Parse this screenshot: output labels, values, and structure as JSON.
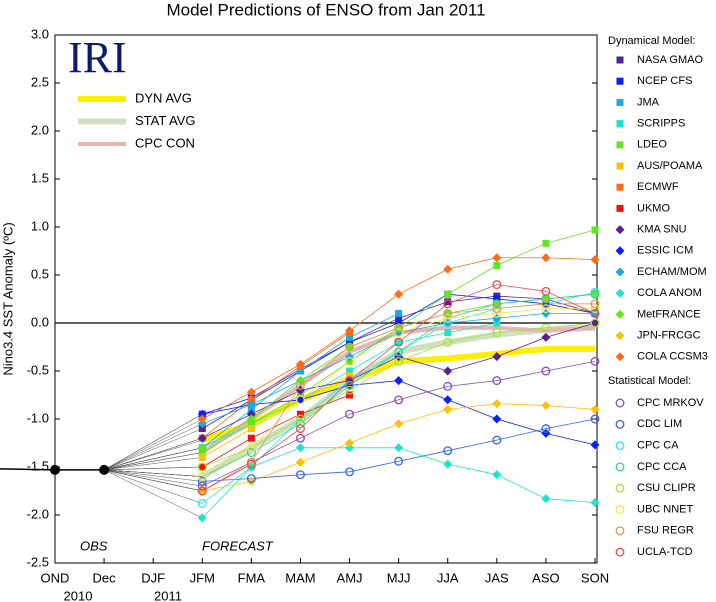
{
  "chart_data": {
    "type": "line",
    "title": "Model Predictions of ENSO from Jan 2011",
    "y_label": "Nino3.4 SST Anomaly (ºC)",
    "logo": "IRI",
    "categories": [
      "OND",
      "Dec",
      "DJF",
      "JFM",
      "FMA",
      "MAM",
      "AMJ",
      "MJJ",
      "JJA",
      "JAS",
      "ASO",
      "SON"
    ],
    "year_labels": [
      "2010",
      "2011"
    ],
    "ylim": [
      -2.5,
      3
    ],
    "yticks": [
      {
        "value": 3,
        "label": "3.0"
      },
      2.5,
      {
        "value": 2,
        "label": "2.0"
      },
      1.5,
      {
        "value": 1,
        "label": "1.0"
      },
      0.5,
      {
        "value": 0,
        "label": "0.0"
      },
      -0.5,
      {
        "value": -1,
        "label": "-1.0"
      },
      -1.5,
      {
        "value": -2,
        "label": "-2.0"
      },
      -2.5
    ],
    "observed": {
      "name": "OBS",
      "color": "#000000",
      "values": [
        -1.53,
        -1.53,
        null,
        null,
        null,
        null,
        null,
        null,
        null,
        null,
        null,
        null
      ]
    },
    "forecast_label": "FORECAST",
    "averages": [
      {
        "name": "DYN AVG",
        "color": "#ffee00",
        "values": [
          null,
          null,
          null,
          -1.22,
          -1.05,
          -0.8,
          -0.6,
          -0.4,
          -0.37,
          -0.32,
          -0.27,
          -0.27
        ]
      },
      {
        "name": "STAT AVG",
        "color": "#cfe0c0",
        "values": [
          null,
          null,
          null,
          -1.6,
          -1.3,
          -1.0,
          -0.6,
          -0.3,
          -0.2,
          -0.12,
          -0.07,
          -0.05
        ]
      },
      {
        "name": "CPC CON",
        "color": "#e8b4b4",
        "values": [
          null,
          null,
          null,
          -1.35,
          -1.0,
          -0.65,
          -0.3,
          -0.1,
          -0.05,
          -0.05,
          -0.08,
          -0.05
        ]
      }
    ],
    "dynamical": {
      "heading": "Dynamical Model:",
      "series": [
        {
          "name": "NASA GMAO",
          "color": "#5a1e96",
          "marker": "square",
          "values": [
            null,
            null,
            null,
            -1.1,
            -0.8,
            -0.5,
            -0.2,
            0.05,
            0.22,
            0.28,
            0.25,
            0.1
          ]
        },
        {
          "name": "NCEP CFS",
          "color": "#0a1eff",
          "marker": "square",
          "values": [
            null,
            null,
            null,
            -0.95,
            -0.78,
            -0.48,
            -0.2,
            0.0,
            0.3,
            0.25,
            0.2,
            0.1
          ]
        },
        {
          "name": "JMA",
          "color": "#19a8e8",
          "marker": "square",
          "values": [
            null,
            null,
            null,
            -1.3,
            -0.9,
            -0.5,
            -0.15,
            0.1,
            null,
            null,
            null,
            null
          ]
        },
        {
          "name": "SCRIPPS",
          "color": "#19e6c8",
          "marker": "square",
          "values": [
            null,
            null,
            null,
            -1.3,
            -1.05,
            -0.8,
            -0.5,
            -0.2,
            -0.1,
            0.0,
            null,
            null
          ]
        },
        {
          "name": "LDEO",
          "color": "#5ee61e",
          "marker": "square",
          "values": [
            null,
            null,
            null,
            -1.35,
            -1.05,
            -0.75,
            -0.4,
            -0.05,
            0.3,
            0.6,
            0.83,
            0.97
          ]
        },
        {
          "name": "AUS/POAMA",
          "color": "#ffc000",
          "marker": "square",
          "values": [
            null,
            null,
            null,
            -1.4,
            -1.1,
            -0.8,
            -0.55,
            null,
            null,
            null,
            null,
            null
          ]
        },
        {
          "name": "ECMWF",
          "color": "#ff6a14",
          "marker": "square",
          "values": [
            null,
            null,
            null,
            -1.2,
            -0.8,
            -0.45,
            -0.1,
            null,
            null,
            null,
            null,
            null
          ]
        },
        {
          "name": "UKMO",
          "color": "#ff0a0a",
          "marker": "square",
          "values": [
            null,
            null,
            null,
            -1.5,
            -1.2,
            -0.95,
            -0.75,
            null,
            null,
            null,
            null,
            null
          ]
        },
        {
          "name": "KMA SNU",
          "color": "#5a1e96",
          "marker": "diamond",
          "values": [
            null,
            null,
            null,
            -1.2,
            -0.95,
            -0.7,
            -0.6,
            -0.35,
            -0.5,
            -0.35,
            -0.15,
            0.0
          ]
        },
        {
          "name": "ESSIC ICM",
          "color": "#0a1eff",
          "marker": "diamond",
          "values": [
            null,
            null,
            null,
            -0.95,
            -0.85,
            -0.8,
            -0.65,
            -0.6,
            -0.8,
            -1.0,
            -1.15,
            -1.27
          ]
        },
        {
          "name": "ECHAM/MOM",
          "color": "#19a8e8",
          "marker": "diamond",
          "values": [
            null,
            null,
            null,
            -1.05,
            -0.85,
            -0.6,
            -0.35,
            -0.1,
            0.0,
            0.05,
            0.1,
            0.1
          ]
        },
        {
          "name": "COLA ANOM",
          "color": "#19e6c8",
          "marker": "diamond",
          "values": [
            null,
            null,
            null,
            -2.03,
            -1.5,
            -1.3,
            -1.3,
            -1.3,
            -1.47,
            -1.58,
            -1.83,
            -1.87
          ]
        },
        {
          "name": "MetFRANCE",
          "color": "#5ee61e",
          "marker": "diamond",
          "values": [
            null,
            null,
            null,
            -1.3,
            -1.0,
            -0.6,
            -0.25,
            -0.05,
            0.1,
            0.2,
            0.25,
            0.3
          ]
        },
        {
          "name": "JPN-FRCGC",
          "color": "#ffc000",
          "marker": "diamond",
          "values": [
            null,
            null,
            null,
            -1.75,
            -1.65,
            -1.45,
            -1.25,
            -1.05,
            -0.9,
            -0.84,
            -0.86,
            -0.9
          ]
        },
        {
          "name": "COLA CCSM3",
          "color": "#ff6a14",
          "marker": "diamond",
          "values": [
            null,
            null,
            null,
            -1.0,
            -0.72,
            -0.43,
            -0.08,
            0.3,
            0.56,
            0.68,
            0.68,
            0.66
          ]
        }
      ]
    },
    "statistical": {
      "heading": "Statistical Model:",
      "series": [
        {
          "name": "CPC MRKOV",
          "color": "#8a4ab4",
          "marker": "circle",
          "values": [
            null,
            null,
            null,
            -1.7,
            -1.45,
            -1.2,
            -0.95,
            -0.8,
            -0.66,
            -0.6,
            -0.5,
            -0.4
          ]
        },
        {
          "name": "CDC LIM",
          "color": "#3264f0",
          "marker": "circle",
          "values": [
            null,
            null,
            null,
            -1.65,
            -1.62,
            -1.58,
            -1.55,
            -1.44,
            -1.33,
            -1.22,
            -1.1,
            -1.0
          ]
        },
        {
          "name": "CPC CA",
          "color": "#32e6e6",
          "marker": "circle",
          "values": [
            null,
            null,
            null,
            -1.88,
            -1.5,
            -1.0,
            -0.6,
            -0.3,
            0.0,
            0.15,
            0.2,
            0.32
          ]
        },
        {
          "name": "CPC CCA",
          "color": "#32d28c",
          "marker": "circle",
          "values": [
            null,
            null,
            null,
            -1.6,
            -1.35,
            -1.05,
            -0.65,
            -0.3,
            0.05,
            0.2,
            0.25,
            0.3
          ]
        },
        {
          "name": "CSU CLIPR",
          "color": "#a0e632",
          "marker": "circle",
          "values": [
            null,
            null,
            null,
            -1.5,
            -1.3,
            -1.0,
            -0.7,
            -0.4,
            -0.2,
            -0.1,
            -0.05,
            0.0
          ]
        },
        {
          "name": "UBC NNET",
          "color": "#f0e650",
          "marker": "circle",
          "values": [
            null,
            null,
            null,
            -1.6,
            -1.3,
            -0.8,
            -0.4,
            -0.1,
            0.05,
            0.1,
            0.15,
            0.15
          ]
        },
        {
          "name": "FSU REGR",
          "color": "#e69650",
          "marker": "circle",
          "values": [
            null,
            null,
            null,
            -1.75,
            -1.45,
            -0.65,
            -0.25,
            -0.05,
            0.1,
            0.15,
            0.2,
            0.2
          ]
        },
        {
          "name": "UCLA-TCD",
          "color": "#f04646",
          "marker": "circle",
          "values": [
            null,
            null,
            null,
            -1.75,
            -1.47,
            -1.1,
            -0.6,
            -0.2,
            0.2,
            0.4,
            0.33,
            0.1
          ]
        }
      ]
    }
  }
}
